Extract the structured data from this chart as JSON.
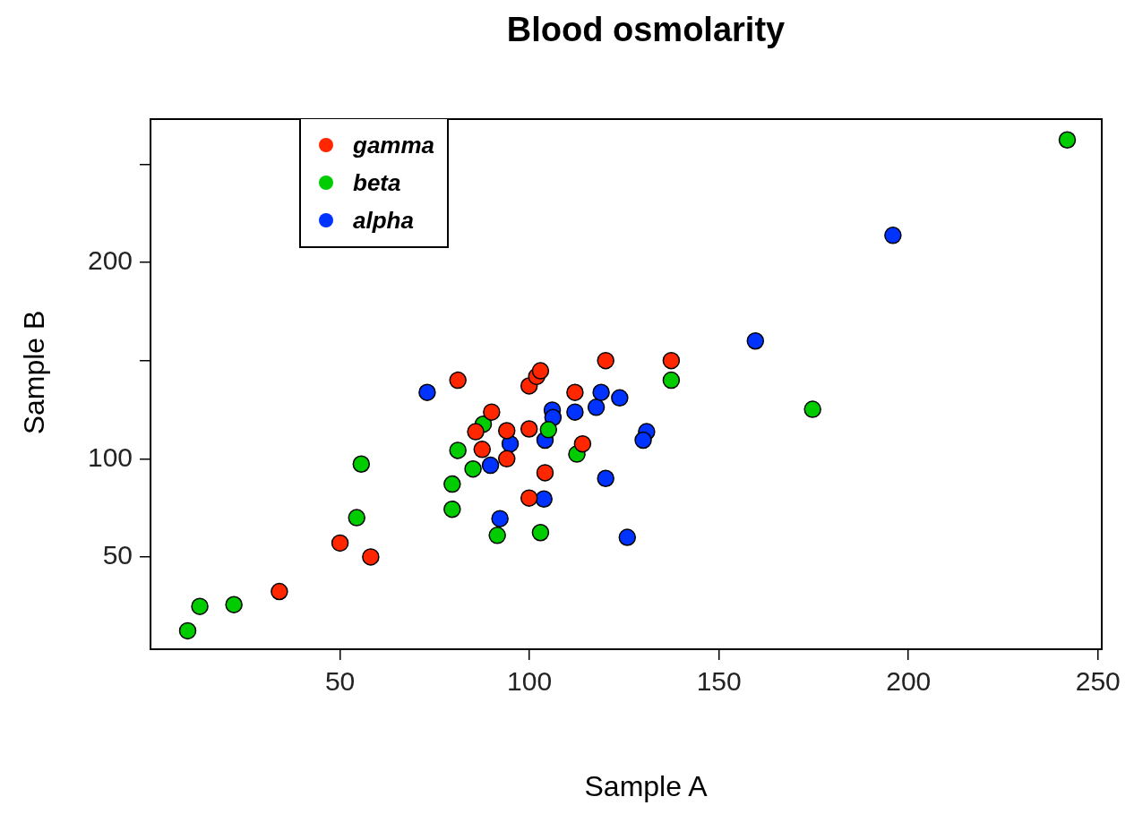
{
  "chart_data": {
    "type": "scatter",
    "title": "Blood osmolarity",
    "xlabel": "Sample A",
    "ylabel": "Sample B",
    "xlim": [
      0,
      251
    ],
    "ylim": [
      3,
      273
    ],
    "xticks": [
      50,
      100,
      150,
      200,
      250
    ],
    "yticks": [
      50,
      100,
      {
        "value": 150,
        "label": null
      },
      200,
      {
        "value": 250,
        "label": null
      }
    ],
    "grid": false,
    "legend": "top left",
    "marker": "circle",
    "series": [
      {
        "name": "gamma",
        "color": "#ff2600",
        "x": [
          34,
          50,
          58.1,
          81.1,
          90,
          85.8,
          87.5,
          94,
          94,
          99.9,
          99.9,
          99.9,
          101.9,
          102.9,
          104.1,
          112,
          114,
          120.1,
          137.4
        ],
        "values": [
          32.4,
          57.1,
          50,
          140,
          123.8,
          113.8,
          104.8,
          114.3,
          100,
          80,
          115.2,
          137.1,
          141.9,
          144.8,
          92.9,
          133.8,
          107.6,
          150,
          150
        ]
      },
      {
        "name": "beta",
        "color": "#00cc00",
        "x": [
          9.8,
          13,
          22,
          54.4,
          55.6,
          79.6,
          79.6,
          81.1,
          85.1,
          87.8,
          91.5,
          102.9,
          105,
          112.5,
          137.4,
          174.7,
          241.9
        ],
        "values": [
          12.4,
          24.8,
          25.7,
          70,
          97.3,
          74.3,
          87.1,
          104.3,
          94.8,
          117.6,
          61,
          62.4,
          114.8,
          102.4,
          140,
          125.2,
          262.4
        ]
      },
      {
        "name": "alpha",
        "color": "#0033ff",
        "x": [
          73,
          89.7,
          94.9,
          92.2,
          103.8,
          104.1,
          106,
          106.2,
          112,
          117.6,
          118.9,
          123.8,
          120.1,
          125.8,
          130.9,
          130,
          159.6,
          195.9
        ],
        "values": [
          133.8,
          96.7,
          107.6,
          69.5,
          79.5,
          109.5,
          124.8,
          121,
          123.8,
          126.2,
          133.8,
          131,
          90,
          60,
          113.8,
          109.5,
          160,
          213.8
        ]
      }
    ]
  }
}
